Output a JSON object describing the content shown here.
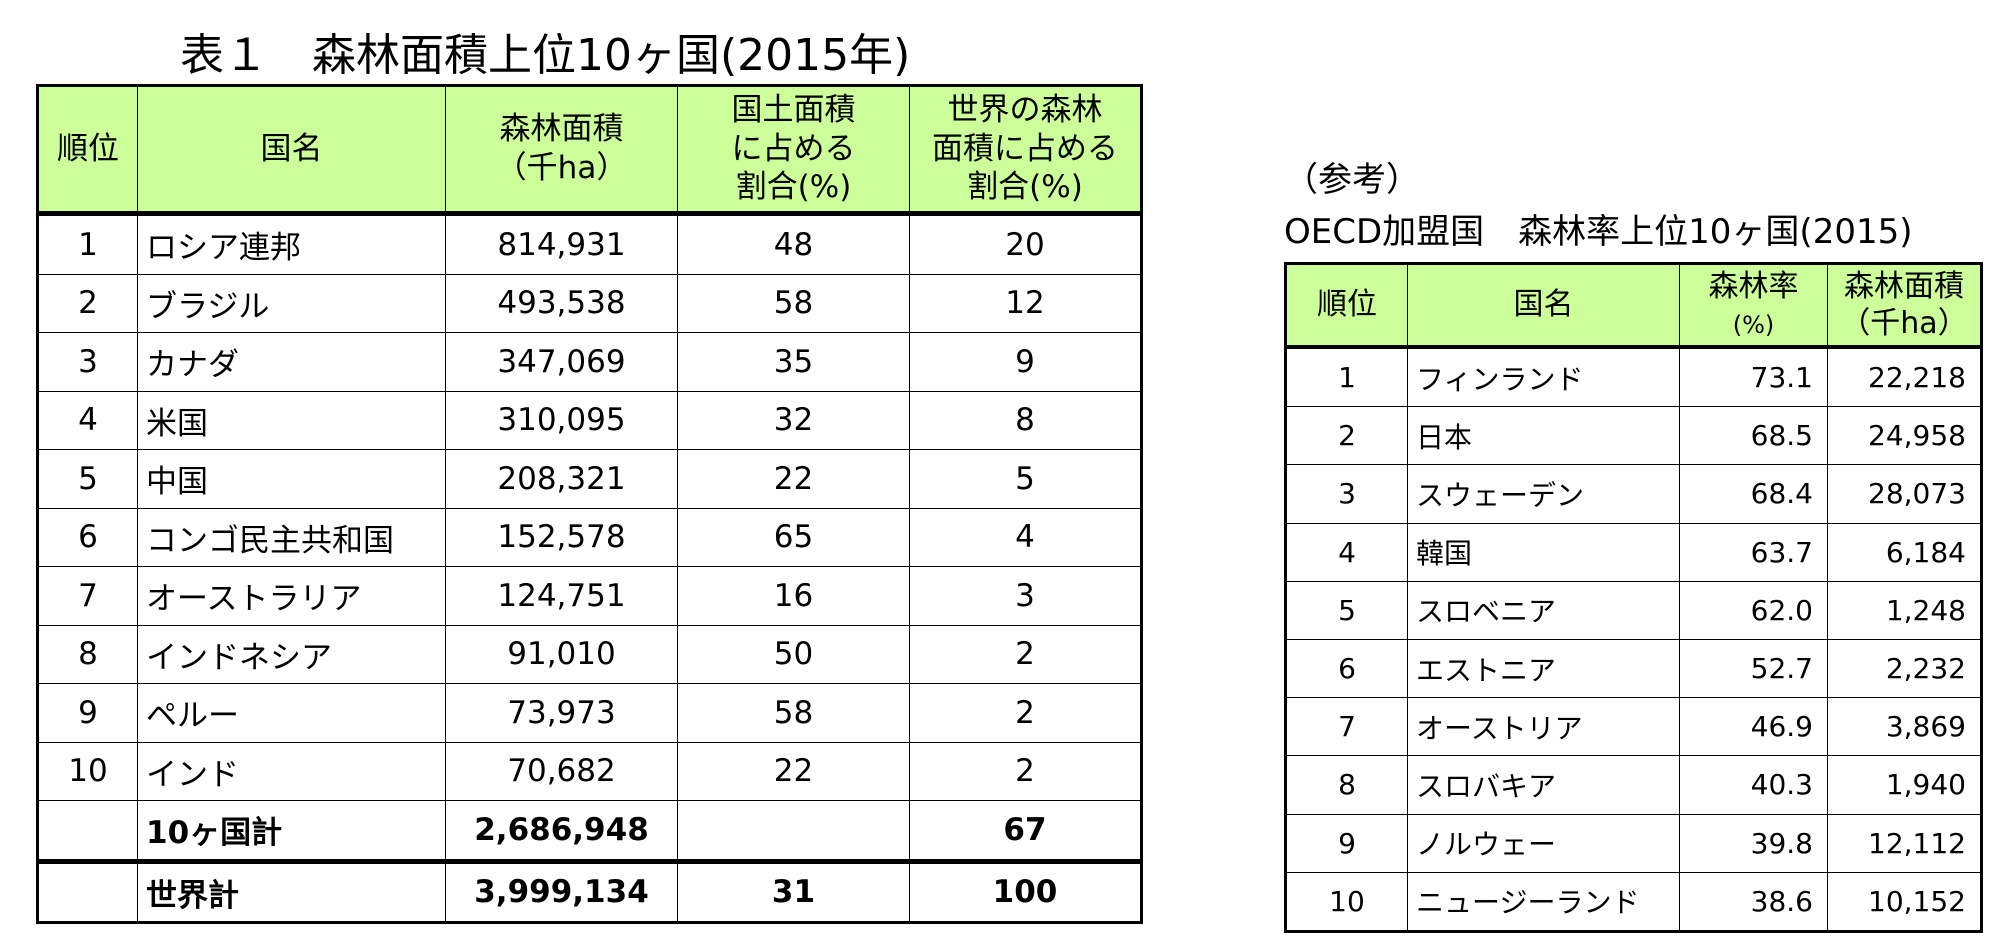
{
  "table1": {
    "title": "表１　森林面積上位10ヶ国(2015年)",
    "headers": {
      "rank": "順位",
      "name": "国名",
      "area_l1": "森林面積",
      "area_l2": "（千ha）",
      "land_l1": "国土面積",
      "land_l2": "に占める",
      "land_l3": "割合(%)",
      "world_l1": "世界の森林",
      "world_l2": "面積に占める",
      "world_l3": "割合(%)"
    },
    "rows": [
      {
        "rank": "1",
        "name": "ロシア連邦",
        "area": "814,931",
        "land_pct": "48",
        "world_pct": "20"
      },
      {
        "rank": "2",
        "name": "ブラジル",
        "area": "493,538",
        "land_pct": "58",
        "world_pct": "12"
      },
      {
        "rank": "3",
        "name": "カナダ",
        "area": "347,069",
        "land_pct": "35",
        "world_pct": "9"
      },
      {
        "rank": "4",
        "name": "米国",
        "area": "310,095",
        "land_pct": "32",
        "world_pct": "8"
      },
      {
        "rank": "5",
        "name": "中国",
        "area": "208,321",
        "land_pct": "22",
        "world_pct": "5"
      },
      {
        "rank": "6",
        "name": "コンゴ民主共和国",
        "area": "152,578",
        "land_pct": "65",
        "world_pct": "4"
      },
      {
        "rank": "7",
        "name": "オーストラリア",
        "area": "124,751",
        "land_pct": "16",
        "world_pct": "3"
      },
      {
        "rank": "8",
        "name": "インドネシア",
        "area": "91,010",
        "land_pct": "50",
        "world_pct": "2"
      },
      {
        "rank": "9",
        "name": "ペルー",
        "area": "73,973",
        "land_pct": "58",
        "world_pct": "2"
      },
      {
        "rank": "10",
        "name": "インド",
        "area": "70,682",
        "land_pct": "22",
        "world_pct": "2"
      }
    ],
    "total": {
      "label": "10ヶ国計",
      "area": "2,686,948",
      "land_pct": "",
      "world_pct": "67"
    },
    "world": {
      "label": "世界計",
      "area": "3,999,134",
      "land_pct": "31",
      "world_pct": "100"
    }
  },
  "table2": {
    "caption_line1": "（参考）",
    "caption_line2": "OECD加盟国　森林率上位10ヶ国(2015)",
    "headers": {
      "rank": "順位",
      "name": "国名",
      "rate_l1": "森林率",
      "rate_l2": "(%)",
      "area_l1": "森林面積",
      "area_l2": "（千ha）"
    },
    "rows": [
      {
        "rank": "1",
        "name": "フィンランド",
        "rate": "73.1",
        "area": "22,218"
      },
      {
        "rank": "2",
        "name": "日本",
        "rate": "68.5",
        "area": "24,958"
      },
      {
        "rank": "3",
        "name": "スウェーデン",
        "rate": "68.4",
        "area": "28,073"
      },
      {
        "rank": "4",
        "name": "韓国",
        "rate": "63.7",
        "area": "6,184"
      },
      {
        "rank": "5",
        "name": "スロベニア",
        "rate": "62.0",
        "area": "1,248"
      },
      {
        "rank": "6",
        "name": "エストニア",
        "rate": "52.7",
        "area": "2,232"
      },
      {
        "rank": "7",
        "name": "オーストリア",
        "rate": "46.9",
        "area": "3,869"
      },
      {
        "rank": "8",
        "name": "スロバキア",
        "rate": "40.3",
        "area": "1,940"
      },
      {
        "rank": "9",
        "name": "ノルウェー",
        "rate": "39.8",
        "area": "12,112"
      },
      {
        "rank": "10",
        "name": "ニュージーランド",
        "rate": "38.6",
        "area": "10,152"
      }
    ]
  },
  "colors": {
    "header_bg": "#ccff99",
    "border": "#000000"
  }
}
